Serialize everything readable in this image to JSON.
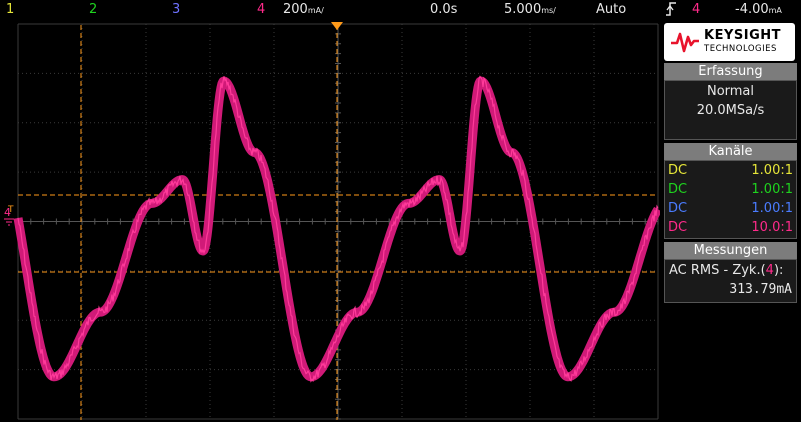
{
  "topbar": {
    "ch1": "1",
    "ch2": "2",
    "ch3": "3",
    "ch4": "4",
    "ch4_scale": "200",
    "ch4_unit": "mA/",
    "time_delay": "0.0s",
    "timebase": "5.000",
    "timebase_unit": "ms/",
    "trigger_mode": "Auto",
    "trigger_icon": "rising-edge-icon",
    "trigger_source": "4",
    "trigger_level": "-4.00",
    "trigger_level_unit": "mA"
  },
  "brand": {
    "name": "KEYSIGHT",
    "sub": "TECHNOLOGIES"
  },
  "acquisition": {
    "header": "Erfassung",
    "mode": "Normal",
    "rate": "20.0MSa/s"
  },
  "channels": {
    "header": "Kanäle",
    "items": [
      {
        "coupling": "DC",
        "probe": "1.00:1",
        "color": "#e6e639"
      },
      {
        "coupling": "DC",
        "probe": "1.00:1",
        "color": "#1fd31f"
      },
      {
        "coupling": "DC",
        "probe": "1.00:1",
        "color": "#4a7cff"
      },
      {
        "coupling": "DC",
        "probe": "10.0:1",
        "color": "#ff2a8a"
      }
    ]
  },
  "measurements": {
    "header": "Messungen",
    "label_prefix": "AC RMS - Zyk.(",
    "label_channel": "4",
    "label_suffix": "):",
    "value": "313.79mA"
  },
  "colors": {
    "ch1": "#e6e639",
    "ch2": "#1fd31f",
    "ch3": "#6f72ff",
    "ch4": "#ff2a8a",
    "trigger": "#ff9a1a",
    "cursor": "#ff9a1a",
    "grid": "#3a3a3a"
  },
  "markers": {
    "ch4_ground": "4",
    "trigger_level": "T"
  }
}
